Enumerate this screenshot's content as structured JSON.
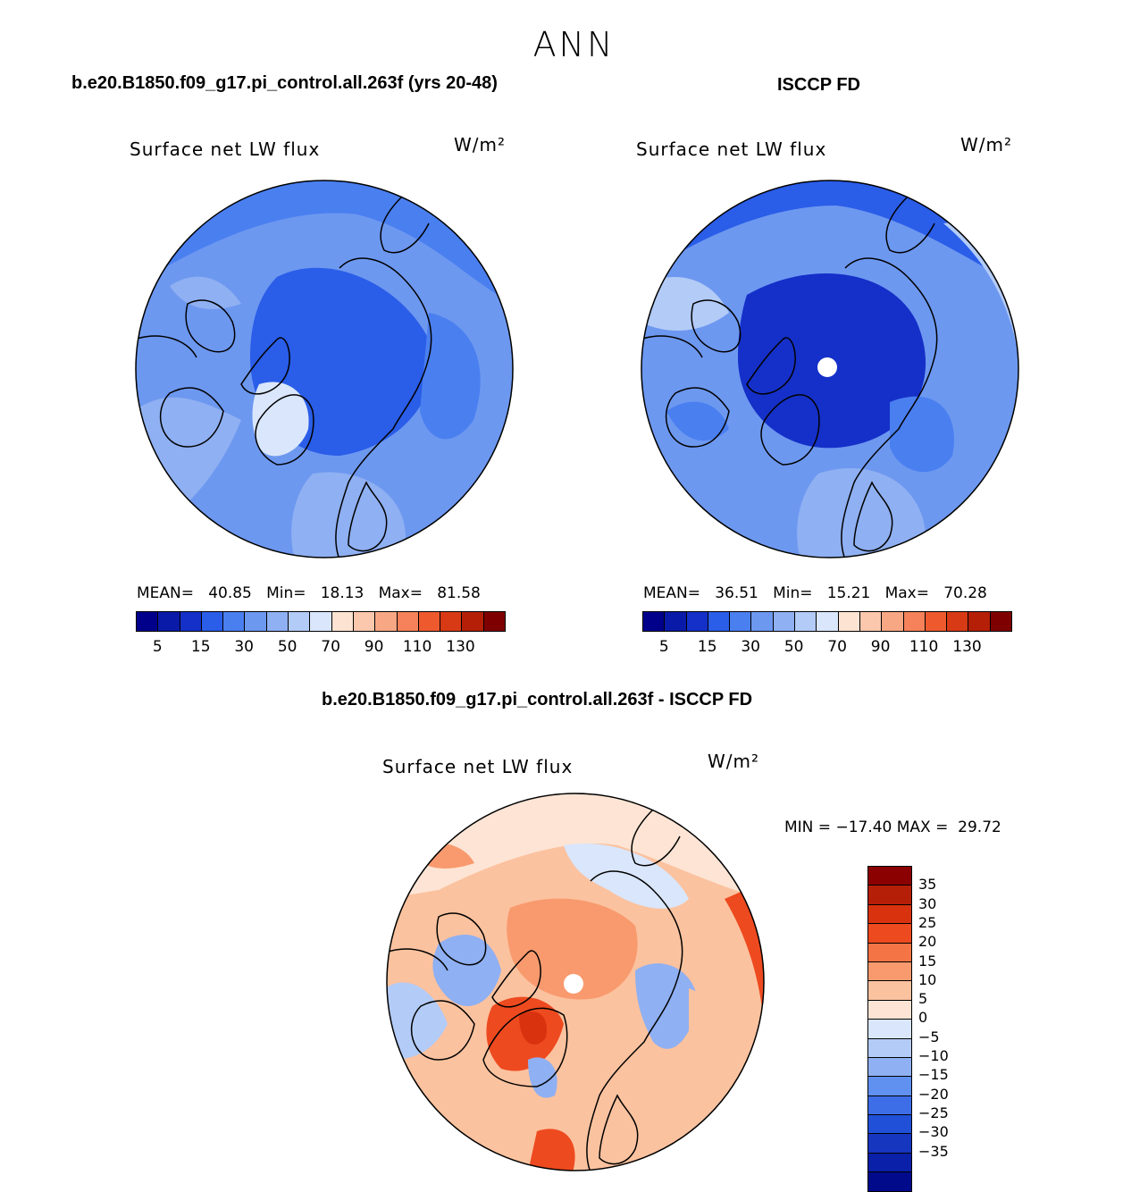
{
  "main_title": "ANN",
  "panels": [
    {
      "case_title": "b.e20.B1850.f09_g17.pi_control.all.263f (yrs 20-48)",
      "variable": "Surface net LW flux",
      "units": "W/m²",
      "stats": "MEAN=   40.85   Min=   18.13   Max=   81.58",
      "colorbar": {
        "colors": [
          "#00008b",
          "#0a1aa8",
          "#1530c8",
          "#2a5de8",
          "#4a7ff0",
          "#6d98f0",
          "#8fb0f2",
          "#b3cbf7",
          "#d9e6fb",
          "#fde3d2",
          "#fbc8ad",
          "#f8a784",
          "#f5825a",
          "#ee5a2e",
          "#d83a15",
          "#b51f08",
          "#7f0000"
        ],
        "ticks": [
          "5",
          "15",
          "30",
          "50",
          "70",
          "90",
          "110",
          "130"
        ]
      }
    },
    {
      "case_title": "ISCCP FD",
      "variable": "Surface net LW flux",
      "units": "W/m²",
      "stats": "MEAN=   36.51   Min=   15.21   Max=   70.28",
      "colorbar": {
        "colors": [
          "#00008b",
          "#0a1aa8",
          "#1530c8",
          "#2a5de8",
          "#4a7ff0",
          "#6d98f0",
          "#8fb0f2",
          "#b3cbf7",
          "#d9e6fb",
          "#fde3d2",
          "#fbc8ad",
          "#f8a784",
          "#f5825a",
          "#ee5a2e",
          "#d83a15",
          "#b51f08",
          "#7f0000"
        ],
        "ticks": [
          "5",
          "15",
          "30",
          "50",
          "70",
          "90",
          "110",
          "130"
        ]
      }
    }
  ],
  "diff_panel": {
    "case_title": "b.e20.B1850.f09_g17.pi_control.all.263f - ISCCP FD",
    "variable": "Surface net LW flux",
    "units": "W/m²",
    "stats": "MIN = −17.40 MAX =  29.72",
    "colorbar": {
      "colors": [
        "#8b0000",
        "#b51f08",
        "#d8320f",
        "#ee4a1f",
        "#f57445",
        "#f89a6e",
        "#fbc29f",
        "#fde4d4",
        "#d9e6fb",
        "#b3cbf7",
        "#8fb0f2",
        "#6090f0",
        "#3d6ee8",
        "#2050d8",
        "#1636c0",
        "#0a20a8",
        "#000a8b"
      ],
      "ticks": [
        "35",
        "30",
        "25",
        "20",
        "15",
        "10",
        "5",
        "0",
        "−5",
        "−10",
        "−15",
        "−20",
        "−25",
        "−30",
        "−35"
      ]
    }
  }
}
